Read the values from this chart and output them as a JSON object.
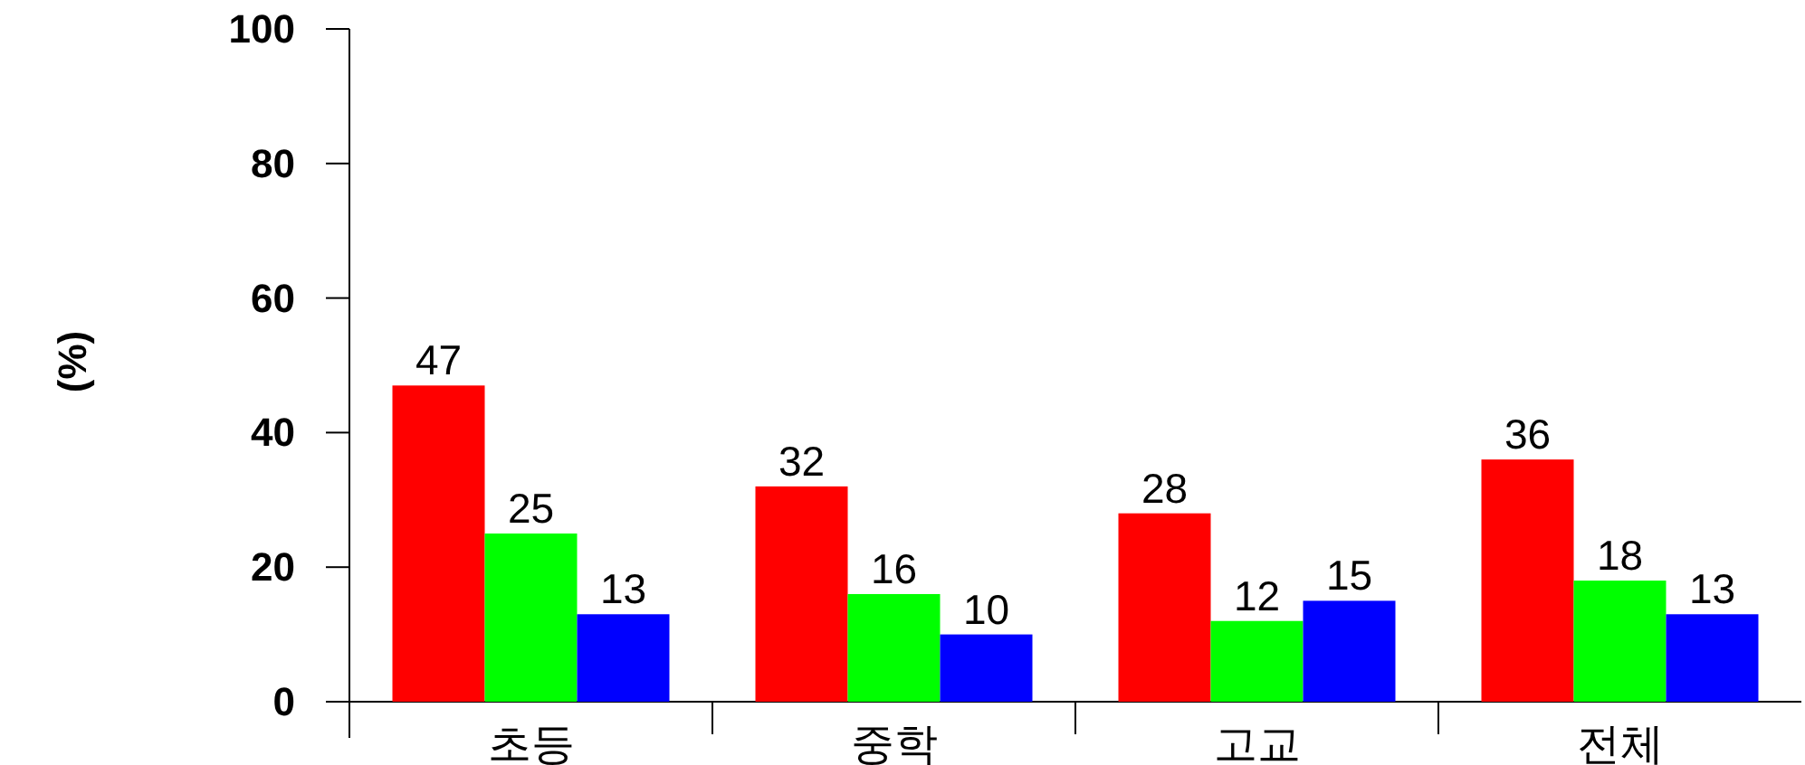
{
  "chart_data": {
    "type": "bar",
    "ylabel": "(%)",
    "categories": [
      "초등",
      "중학",
      "고교",
      "전체"
    ],
    "series": [
      {
        "color": "#ff0000",
        "values": [
          47,
          32,
          28,
          36
        ]
      },
      {
        "color": "#00ff00",
        "values": [
          25,
          16,
          12,
          18
        ]
      },
      {
        "color": "#0000ff",
        "values": [
          13,
          10,
          15,
          13
        ]
      }
    ],
    "ylim": [
      0,
      100
    ],
    "yticks": [
      0,
      20,
      40,
      60,
      80,
      100
    ],
    "data_labels": true,
    "grid": false
  }
}
